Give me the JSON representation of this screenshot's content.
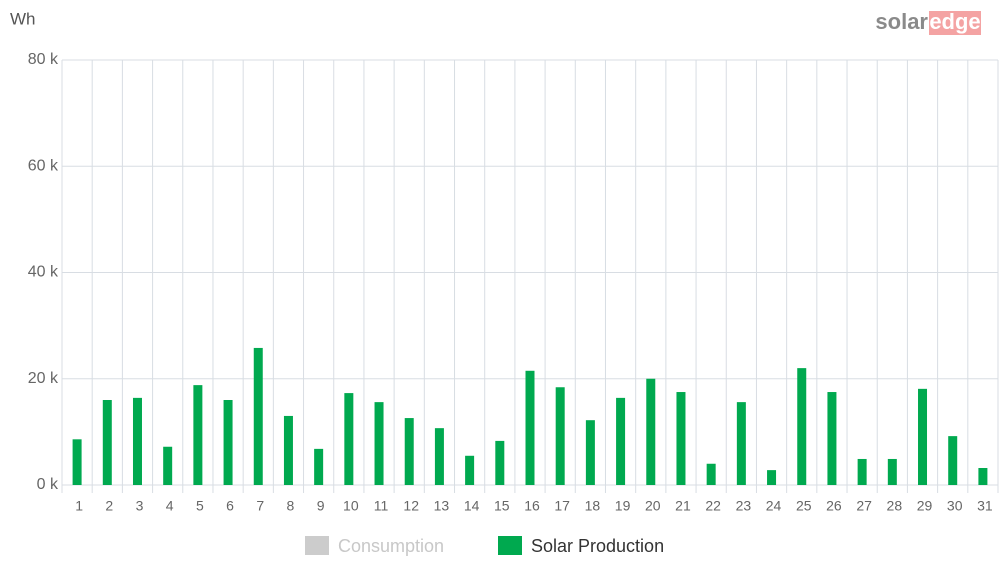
{
  "chart_data": {
    "type": "bar",
    "y_axis_label": "Wh",
    "logo": {
      "left": "solar",
      "right": "edge"
    },
    "categories": [
      "1",
      "2",
      "3",
      "4",
      "5",
      "6",
      "7",
      "8",
      "9",
      "10",
      "11",
      "12",
      "13",
      "14",
      "15",
      "16",
      "17",
      "18",
      "19",
      "20",
      "21",
      "22",
      "23",
      "24",
      "25",
      "26",
      "27",
      "28",
      "29",
      "30",
      "31"
    ],
    "series": [
      {
        "name": "Consumption",
        "color": "#cccccc",
        "visible": false,
        "values": [
          null,
          null,
          null,
          null,
          null,
          null,
          null,
          null,
          null,
          null,
          null,
          null,
          null,
          null,
          null,
          null,
          null,
          null,
          null,
          null,
          null,
          null,
          null,
          null,
          null,
          null,
          null,
          null,
          null,
          null,
          null
        ]
      },
      {
        "name": "Solar Production",
        "color": "#00a94f",
        "visible": true,
        "values": [
          8600,
          16000,
          16400,
          7200,
          18800,
          16000,
          25800,
          13000,
          6800,
          17300,
          15600,
          12600,
          10700,
          5500,
          8300,
          21500,
          18400,
          12200,
          16400,
          20000,
          17500,
          4000,
          15600,
          2800,
          22000,
          17500,
          4900,
          4900,
          18100,
          9200,
          3200
        ]
      }
    ],
    "ylim": [
      0,
      80000
    ],
    "yticks": [
      {
        "value": 0,
        "label": "0 k"
      },
      {
        "value": 20000,
        "label": "20 k"
      },
      {
        "value": 40000,
        "label": "40 k"
      },
      {
        "value": 60000,
        "label": "60 k"
      },
      {
        "value": 80000,
        "label": "80 k"
      }
    ],
    "grid": true
  }
}
